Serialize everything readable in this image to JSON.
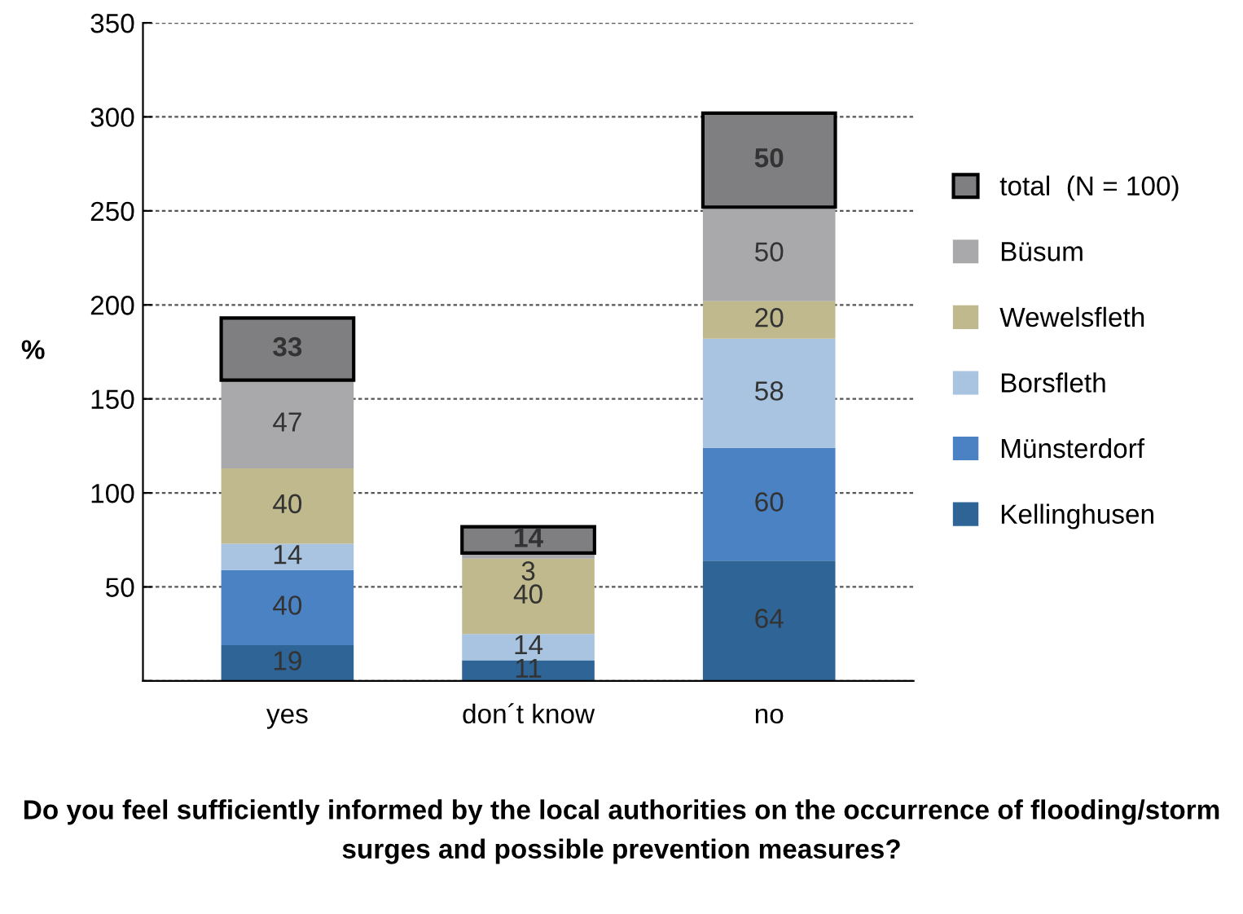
{
  "chart_data": {
    "type": "bar",
    "stacked": true,
    "ylabel": "%",
    "annotations": [
      "Do you feel sufficiently informed by the local authorities on the occurrence of flooding/storm surges and possible prevention measures?"
    ],
    "categories": [
      "yes",
      "don´t know",
      "no"
    ],
    "series": [
      {
        "name": "Kellinghusen",
        "color": "#2e6496",
        "values": [
          19,
          11,
          64
        ]
      },
      {
        "name": "Münsterdorf",
        "color": "#4a82c4",
        "values": [
          40,
          null,
          60
        ]
      },
      {
        "name": "Borsfleth",
        "color": "#a8c4e0",
        "values": [
          14,
          14,
          58
        ]
      },
      {
        "name": "Wewelsfleth",
        "color": "#c0b98e",
        "values": [
          40,
          40,
          20
        ]
      },
      {
        "name": "Büsum",
        "color": "#a9a9ab",
        "values": [
          47,
          3,
          50
        ]
      },
      {
        "name": "total  (N = 100)",
        "color": "#7f7f81",
        "values": [
          33,
          14,
          50
        ]
      }
    ],
    "ylim": [
      0,
      350
    ],
    "yticks": [
      {
        "value": 0,
        "label": null
      },
      50,
      100,
      150,
      200,
      250,
      300,
      350
    ],
    "grid": "y",
    "legend": "right",
    "data_labels": true
  }
}
